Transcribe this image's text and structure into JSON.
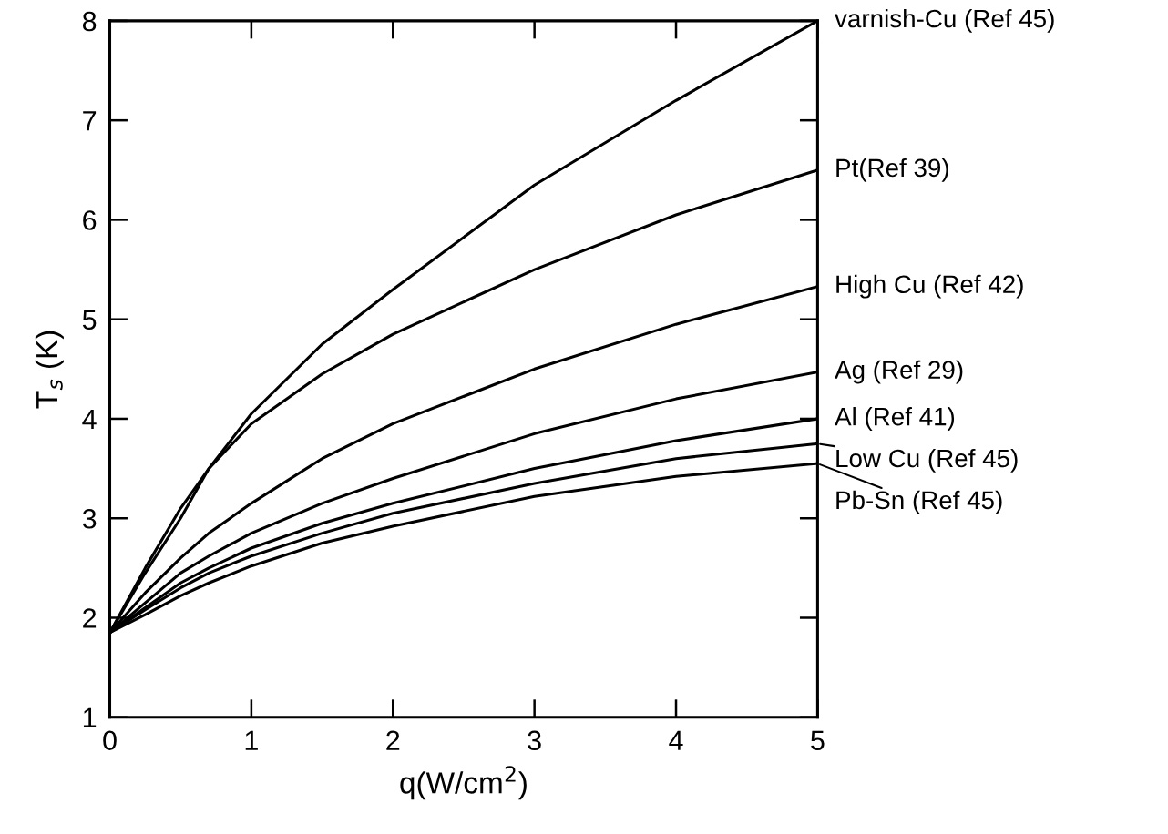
{
  "chart_data": {
    "type": "line",
    "xlabel": "q(W/cm$^{2}$)",
    "ylabel": "T$_{s}$ (K)",
    "xlim": [
      0,
      5
    ],
    "ylim": [
      1,
      8
    ],
    "xticks": [
      0,
      1,
      2,
      3,
      4,
      5
    ],
    "yticks": [
      1,
      2,
      3,
      4,
      5,
      6,
      7,
      8
    ],
    "grid": false,
    "legend": "right",
    "marker": "none",
    "line_style": "solid",
    "x": [
      0,
      0.25,
      0.5,
      0.7,
      1,
      1.5,
      2,
      3,
      4,
      5
    ],
    "series": [
      {
        "name": "varnish-Cu (Ref 45)",
        "color": "#000000",
        "values": [
          1.85,
          2.5,
          3.1,
          3.5,
          4.05,
          4.75,
          5.3,
          6.35,
          7.2,
          8.0
        ]
      },
      {
        "name": "Pt(Ref 39)",
        "color": "#000000",
        "values": [
          1.85,
          2.45,
          3.0,
          3.5,
          3.95,
          4.45,
          4.85,
          5.5,
          6.05,
          6.5
        ]
      },
      {
        "name": "High Cu (Ref 42)",
        "color": "#000000",
        "values": [
          1.85,
          2.25,
          2.6,
          2.85,
          3.15,
          3.6,
          3.95,
          4.5,
          4.95,
          5.33
        ]
      },
      {
        "name": "Ag (Ref 29)",
        "color": "#000000",
        "values": [
          1.85,
          2.15,
          2.45,
          2.62,
          2.85,
          3.15,
          3.4,
          3.85,
          4.2,
          4.47
        ]
      },
      {
        "name": "Al (Ref 41)",
        "color": "#000000",
        "values": [
          1.85,
          2.1,
          2.35,
          2.5,
          2.7,
          2.95,
          3.15,
          3.5,
          3.78,
          4.0
        ]
      },
      {
        "name": "Low Cu (Ref 45)",
        "color": "#000000",
        "values": [
          1.85,
          2.08,
          2.3,
          2.45,
          2.62,
          2.85,
          3.05,
          3.35,
          3.6,
          3.75
        ]
      },
      {
        "name": "Pb-Sn (Ref 45)",
        "color": "#000000",
        "values": [
          1.85,
          2.03,
          2.22,
          2.35,
          2.52,
          2.75,
          2.92,
          3.22,
          3.42,
          3.55
        ]
      }
    ]
  }
}
